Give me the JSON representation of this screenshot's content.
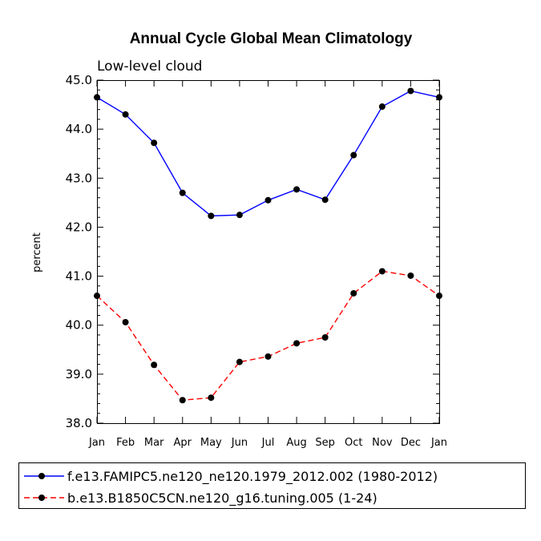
{
  "chart_data": {
    "type": "line",
    "title": "Annual Cycle Global Mean Climatology",
    "subtitle": "Low-level cloud",
    "xlabel": "",
    "ylabel": "percent",
    "ylim": [
      38.0,
      45.0
    ],
    "yticks": [
      "38.0",
      "39.0",
      "40.0",
      "41.0",
      "42.0",
      "43.0",
      "44.0",
      "45.0"
    ],
    "categories": [
      "Jan",
      "Feb",
      "Mar",
      "Apr",
      "May",
      "Jun",
      "Jul",
      "Aug",
      "Sep",
      "Oct",
      "Nov",
      "Dec",
      "Jan"
    ],
    "series": [
      {
        "name": "f.e13.FAMIPC5.ne120_ne120.1979_2012.002 (1980-2012)",
        "color": "#0000ff",
        "dash": "solid",
        "values": [
          44.65,
          44.3,
          43.72,
          42.7,
          42.23,
          42.25,
          42.55,
          42.77,
          42.56,
          43.47,
          44.46,
          44.78,
          44.65
        ]
      },
      {
        "name": "b.e13.B1850C5CN.ne120_g16.tuning.005 (1-24)",
        "color": "#ff0000",
        "dash": "dashed",
        "values": [
          40.6,
          40.06,
          39.19,
          38.47,
          38.52,
          39.25,
          39.36,
          39.63,
          39.75,
          40.65,
          41.1,
          41.01,
          40.6
        ]
      }
    ],
    "legend_position": "bottom",
    "grid": false
  }
}
